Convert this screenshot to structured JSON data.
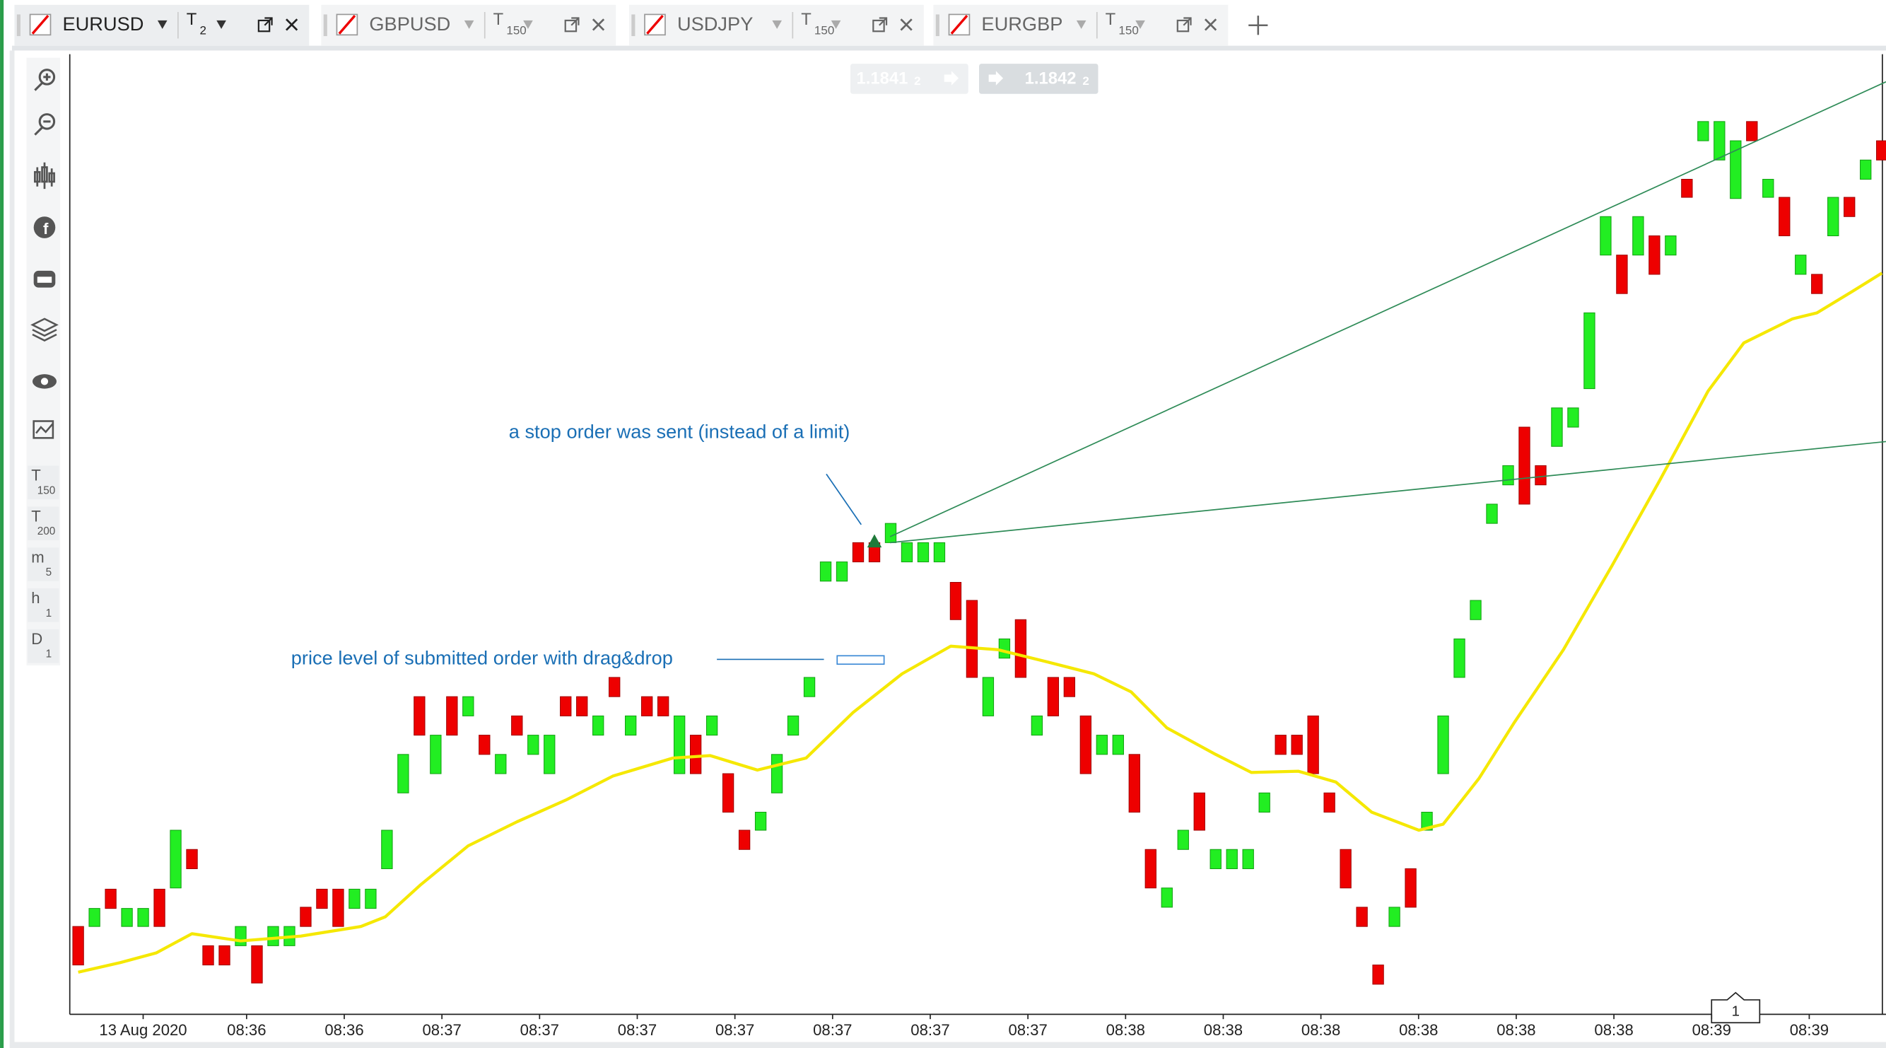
{
  "tabs": [
    {
      "symbol": "EURUSD",
      "unit": "T",
      "count": "2"
    },
    {
      "symbol": "GBPUSD",
      "unit": "T",
      "count": "150"
    },
    {
      "symbol": "USDJPY",
      "unit": "T",
      "count": "150"
    },
    {
      "symbol": "EURGBP",
      "unit": "T",
      "count": "150"
    }
  ],
  "toolbar_timeframes": [
    {
      "unit": "T",
      "count": "150"
    },
    {
      "unit": "T",
      "count": "200"
    },
    {
      "unit": "m",
      "count": "5"
    },
    {
      "unit": "h",
      "count": "1"
    },
    {
      "unit": "D",
      "count": "1"
    }
  ],
  "prices": [
    {
      "text": "1.1841",
      "digit": "2"
    },
    {
      "text": "1.1842",
      "digit": "2"
    }
  ],
  "annotations": [
    "a stop order was sent (instead of a limit)",
    "price level of submitted order with drag&drop"
  ],
  "badge": "1",
  "chart_data": {
    "type": "candlestick",
    "up_color": "#22ee22",
    "down_color": "#ee0000",
    "ylim": [
      0,
      800
    ],
    "open": [
      73,
      73,
      104,
      73,
      73,
      104,
      105,
      137,
      57,
      57,
      57,
      57,
      57,
      57,
      89,
      104,
      104,
      88,
      88,
      121,
      184,
      264,
      200,
      264,
      248,
      232,
      200,
      248,
      216,
      200,
      264,
      264,
      232,
      280,
      232,
      264,
      264,
      200,
      232,
      232,
      200,
      153,
      153,
      184,
      232,
      264,
      360,
      360,
      392,
      392,
      392,
      376,
      376,
      376,
      359,
      344,
      248,
      296,
      328,
      232,
      280,
      280,
      248,
      216,
      216,
      216,
      137,
      89,
      137,
      184,
      121,
      121,
      121,
      168,
      232,
      232,
      248,
      184,
      137,
      89,
      41,
      73,
      121,
      153,
      200,
      280,
      328,
      408,
      440,
      488,
      456,
      472,
      488,
      520,
      631,
      631,
      631,
      647,
      631,
      694,
      726,
      710,
      678,
      742,
      679,
      679,
      615,
      615,
      647,
      679,
      694,
      726
    ],
    "close": [
      41,
      88,
      88,
      88,
      88,
      73,
      153,
      121,
      41,
      41,
      73,
      26,
      73,
      73,
      73,
      88,
      73,
      104,
      104,
      153,
      216,
      232,
      232,
      232,
      264,
      216,
      216,
      232,
      232,
      232,
      248,
      248,
      248,
      264,
      248,
      248,
      248,
      248,
      200,
      248,
      168,
      137,
      168,
      216,
      248,
      280,
      376,
      376,
      376,
      376,
      408,
      392,
      392,
      392,
      328,
      280,
      280,
      312,
      280,
      248,
      248,
      264,
      200,
      232,
      232,
      168,
      105,
      105,
      153,
      153,
      137,
      137,
      137,
      184,
      216,
      216,
      200,
      168,
      105,
      73,
      25,
      89,
      89,
      168,
      248,
      312,
      344,
      424,
      456,
      424,
      440,
      504,
      504,
      583,
      663,
      599,
      663,
      615,
      647,
      679,
      742,
      742,
      726,
      726,
      694,
      647,
      631,
      599,
      679,
      663,
      710,
      710
    ],
    "ma": {
      "color": "#f5e800",
      "x": [
        0,
        2.6,
        4.8,
        7,
        10,
        13.7,
        17.4,
        18.9,
        21.1,
        24,
        27,
        30,
        32.9,
        36.6,
        38.9,
        41.8,
        44.8,
        47.7,
        50.7,
        53.7,
        56.6,
        59.6,
        62.5,
        64.8,
        67,
        70,
        72.2,
        75.1,
        77.4,
        79.6,
        82.5,
        84,
        86.2,
        88.4,
        91.4,
        94.4,
        97.3,
        100.3,
        102.5,
        105.5,
        107,
        109.2,
        111
      ],
      "values": [
        35,
        43,
        51,
        67,
        61,
        65,
        73,
        81,
        108,
        140,
        160,
        178,
        198,
        213,
        215,
        203,
        213,
        251,
        283,
        306,
        303,
        293,
        283,
        268,
        238,
        216,
        201,
        202,
        193,
        168,
        153,
        158,
        196,
        243,
        303,
        373,
        443,
        518,
        558,
        578,
        583,
        601,
        616
      ]
    },
    "x_labels": [
      "13 Aug 2020",
      "08:36",
      "08:36",
      "08:37",
      "08:37",
      "08:37",
      "08:37",
      "08:37",
      "08:37",
      "08:37",
      "08:38",
      "08:38",
      "08:38",
      "08:38",
      "08:38",
      "08:38",
      "08:39",
      "08:39"
    ]
  }
}
